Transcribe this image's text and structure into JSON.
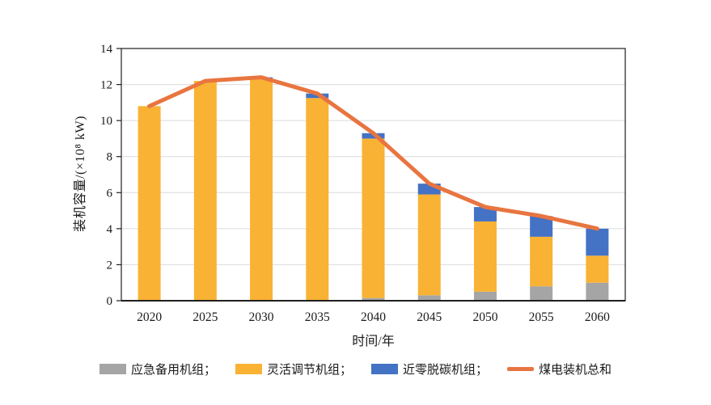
{
  "chart_data": {
    "type": "bar",
    "stacked": true,
    "title": "",
    "categories": [
      "2020",
      "2025",
      "2030",
      "2035",
      "2040",
      "2045",
      "2050",
      "2055",
      "2060"
    ],
    "series": [
      {
        "name": "应急备用机组",
        "color": "#A5A5A5",
        "values": [
          0,
          0,
          0,
          0,
          0.15,
          0.3,
          0.5,
          0.8,
          1.0
        ]
      },
      {
        "name": "灵活调节机组",
        "color": "#F9B234",
        "values": [
          10.8,
          12.2,
          12.3,
          11.25,
          8.85,
          5.6,
          3.9,
          2.75,
          1.5
        ]
      },
      {
        "name": "近零脱碳机组",
        "color": "#4472C4",
        "values": [
          0,
          0,
          0.1,
          0.25,
          0.3,
          0.6,
          0.8,
          1.15,
          1.5
        ]
      }
    ],
    "line_series": {
      "name": "煤电装机总和",
      "color": "#E87540",
      "values": [
        10.8,
        12.2,
        12.4,
        11.5,
        9.3,
        6.5,
        5.2,
        4.7,
        4.0
      ]
    },
    "xlabel": "时间/年",
    "ylabel": "装机容量/(×10⁸ kW)",
    "ylim": [
      0,
      14
    ],
    "yticks": [
      0,
      2,
      4,
      6,
      8,
      10,
      12,
      14
    ],
    "grid": true,
    "legend_position": "bottom",
    "colors": {
      "frame": "#1f1f1f",
      "gridline": "#DCDCDC",
      "text": "#1a1a1a",
      "background": "#ffffff"
    }
  },
  "legend": {
    "items": [
      {
        "label": "应急备用机组；",
        "color": "#A5A5A5",
        "type": "rect"
      },
      {
        "label": "灵活调节机组；",
        "color": "#F9B234",
        "type": "rect"
      },
      {
        "label": "近零脱碳机组；",
        "color": "#4472C4",
        "type": "rect"
      },
      {
        "label": "煤电装机总和",
        "color": "#E87540",
        "type": "line"
      }
    ]
  }
}
